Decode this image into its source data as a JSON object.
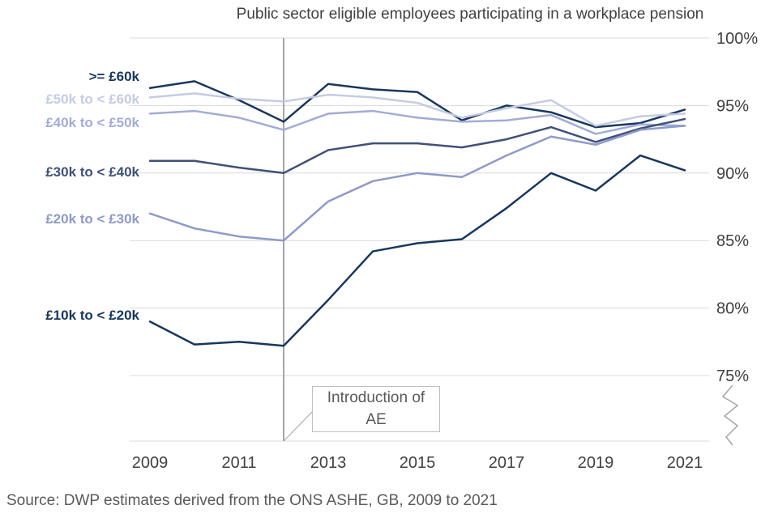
{
  "chart": {
    "title": "Public sector eligible employees participating in a workplace pension",
    "annotation": "Introduction of AE",
    "source": "Source: DWP estimates derived from the ONS ASHE, GB, 2009 to 2021"
  },
  "chart_data": {
    "type": "line",
    "title": "Public sector eligible employees participating in a workplace pension",
    "xlabel": "",
    "ylabel": "",
    "x": [
      2009,
      2010,
      2011,
      2012,
      2013,
      2014,
      2015,
      2016,
      2017,
      2018,
      2019,
      2020,
      2021
    ],
    "xticks": [
      2009,
      2011,
      2013,
      2015,
      2017,
      2019,
      2021
    ],
    "yticks": [
      {
        "value": 100,
        "label": "100%"
      },
      {
        "value": 95,
        "label": "95%"
      },
      {
        "value": 90,
        "label": "90%"
      },
      {
        "value": 85,
        "label": "85%"
      },
      {
        "value": 80,
        "label": "80%"
      },
      {
        "value": 75,
        "label": "75%"
      }
    ],
    "ylim": [
      75,
      100
    ],
    "grid": "horizontal",
    "legend_position": "left-inline-labels",
    "axis_break": true,
    "annotation": {
      "label": "Introduction of AE",
      "x": 2012
    },
    "colors": {
      "text": "#404040",
      "muted": "#595959",
      "grid": "#d9d9d9",
      "axis": "#a6a6a6"
    },
    "series": [
      {
        "name": ">= £60k",
        "color": "#17375E",
        "values": [
          96.3,
          96.8,
          95.4,
          93.8,
          96.6,
          96.2,
          96.0,
          93.9,
          95.0,
          94.5,
          93.4,
          93.7,
          94.7
        ]
      },
      {
        "name": "£50k to < £60k",
        "color": "#C3CCE3",
        "values": [
          95.6,
          95.9,
          95.5,
          95.3,
          95.8,
          95.6,
          95.2,
          94.1,
          94.8,
          95.4,
          93.5,
          94.2,
          94.4
        ]
      },
      {
        "name": "£40k to < £50k",
        "color": "#A3ACD6",
        "values": [
          94.4,
          94.6,
          94.1,
          93.2,
          94.4,
          94.6,
          94.1,
          93.8,
          93.9,
          94.3,
          92.9,
          93.6,
          93.5
        ]
      },
      {
        "name": "£30k to < £40k",
        "color": "#3F5178",
        "values": [
          90.9,
          90.9,
          90.4,
          90.0,
          91.7,
          92.2,
          92.2,
          91.9,
          92.5,
          93.4,
          92.3,
          93.3,
          94.0
        ]
      },
      {
        "name": "£20k to < £30k",
        "color": "#8E9AC9",
        "values": [
          87.0,
          85.9,
          85.3,
          85.0,
          87.9,
          89.4,
          90.0,
          89.7,
          91.3,
          92.7,
          92.1,
          93.2,
          93.5
        ]
      },
      {
        "name": "£10k to < £20k",
        "color": "#17375E",
        "values": [
          79.0,
          77.3,
          77.5,
          77.2,
          80.6,
          84.2,
          84.8,
          85.1,
          87.4,
          90.0,
          88.7,
          91.3,
          90.2
        ]
      }
    ]
  }
}
